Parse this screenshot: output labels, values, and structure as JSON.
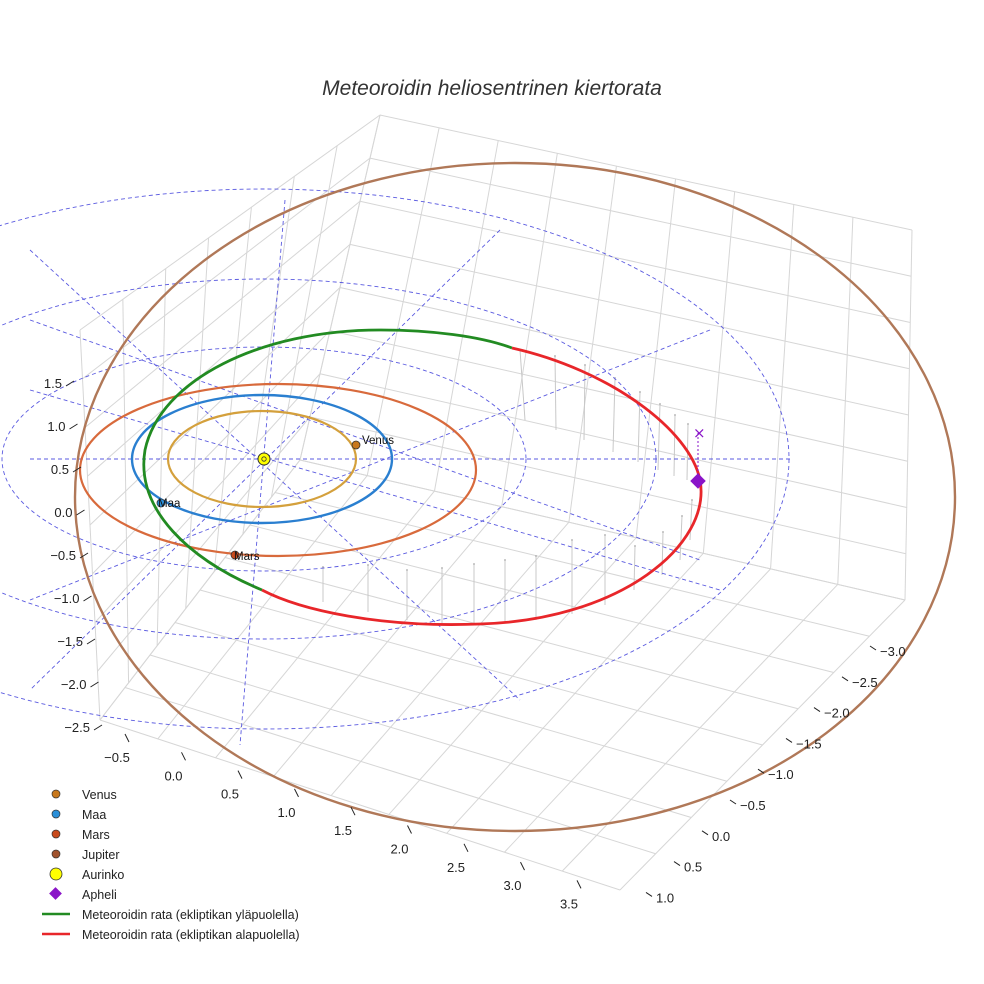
{
  "chart_data": {
    "type": "line",
    "title": "Meteoroidin heliosentrinen kiertorata",
    "projection": "3d",
    "grid": true,
    "legend_position": "bottom-left",
    "x_ticks": [
      "−0.5",
      "0.0",
      "0.5",
      "1.0",
      "1.5",
      "2.0",
      "2.5",
      "3.0",
      "3.5"
    ],
    "y_ticks": [
      "−3.0",
      "−2.5",
      "−2.0",
      "−1.5",
      "−1.0",
      "−0.5",
      "0.0",
      "0.5",
      "1.0"
    ],
    "z_ticks": [
      "1.5",
      "1.0",
      "0.5",
      "0.0",
      "−0.5",
      "−1.0",
      "−1.5",
      "−2.0",
      "−2.5"
    ],
    "planets": [
      {
        "name": "Venus",
        "label": "Venus",
        "orbit_radius_au": 0.72,
        "color": "#d4a03c",
        "marker_color": "#c8781c"
      },
      {
        "name": "Maa",
        "label": "Maa",
        "orbit_radius_au": 1.0,
        "color": "#2a7fd0",
        "marker_color": "#2a8fd8"
      },
      {
        "name": "Mars",
        "label": "Mars",
        "orbit_radius_au": 1.52,
        "color": "#d86a3c",
        "marker_color": "#c84a1c"
      },
      {
        "name": "Jupiter",
        "label": "",
        "orbit_radius_au": 5.2,
        "color": "#b07858",
        "marker_color": "#a0522d"
      }
    ],
    "sun": {
      "name": "Aurinko",
      "color": "#ffff00"
    },
    "aphelion": {
      "name": "Apheli",
      "color": "#8a14c8"
    },
    "series": [
      {
        "name": "Meteoroidin rata (ekliptikan yläpuolella)",
        "color": "#228b22"
      },
      {
        "name": "Meteoroidin rata (ekliptikan alapuolella)",
        "color": "#e8262a"
      }
    ]
  }
}
